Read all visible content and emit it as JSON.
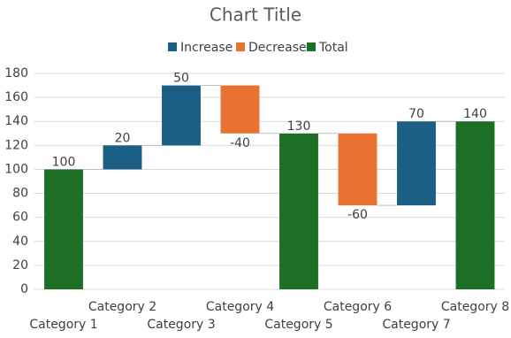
{
  "chart_data": {
    "type": "waterfall",
    "title": "Chart Title",
    "categories": [
      "Category 1",
      "Category 2",
      "Category 3",
      "Category 4",
      "Category 5",
      "Category 6",
      "Category 7",
      "Category 8"
    ],
    "values": [
      100,
      20,
      50,
      -40,
      130,
      -60,
      70,
      140
    ],
    "point_series": [
      2,
      0,
      0,
      1,
      2,
      1,
      0,
      2
    ],
    "series": [
      {
        "name": "Increase",
        "color": "#1b5f85"
      },
      {
        "name": "Decrease",
        "color": "#e97132"
      },
      {
        "name": "Total",
        "color": "#1e6f26"
      }
    ],
    "ylim": [
      0,
      180
    ],
    "yticks": [
      0,
      20,
      40,
      60,
      80,
      100,
      120,
      140,
      160,
      180
    ],
    "grid": true,
    "legend": "top"
  }
}
